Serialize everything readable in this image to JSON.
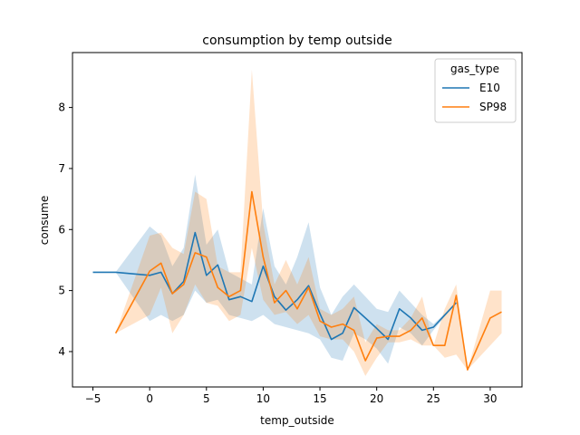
{
  "chart_data": {
    "type": "line",
    "title": "consumption by temp outside",
    "xlabel": "temp_outside",
    "ylabel": "consume",
    "xlim": [
      -6.8,
      32.8
    ],
    "ylim": [
      3.42,
      8.9
    ],
    "xticks": [
      -5,
      0,
      5,
      10,
      15,
      20,
      25,
      30
    ],
    "yticks": [
      4,
      5,
      6,
      7,
      8
    ],
    "grid": false,
    "legend": {
      "title": "gas_type",
      "placement": "top-right"
    },
    "series": [
      {
        "name": "E10",
        "color": "#1f77b4",
        "x": [
          -5,
          -3,
          0,
          1,
          2,
          3,
          4,
          5,
          6,
          7,
          8,
          9,
          10,
          11,
          12,
          13,
          14,
          15,
          16,
          17,
          18,
          19,
          20,
          21,
          22,
          23,
          24,
          25,
          27
        ],
        "y": [
          5.3,
          5.3,
          5.25,
          5.3,
          4.95,
          5.15,
          5.95,
          5.25,
          5.42,
          4.85,
          4.9,
          4.82,
          5.4,
          4.9,
          4.68,
          4.85,
          5.08,
          4.62,
          4.2,
          4.3,
          4.72,
          4.55,
          4.38,
          4.2,
          4.7,
          4.55,
          4.35,
          4.4,
          4.8
        ],
        "ci_low": [
          5.3,
          5.3,
          4.5,
          4.6,
          4.5,
          4.6,
          5.0,
          4.8,
          4.85,
          4.6,
          4.55,
          4.5,
          4.6,
          4.45,
          4.4,
          4.35,
          4.3,
          4.2,
          3.9,
          3.85,
          4.3,
          4.2,
          4.05,
          3.8,
          4.4,
          4.3,
          4.1,
          4.35,
          4.8
        ],
        "ci_high": [
          5.3,
          5.3,
          6.05,
          5.9,
          5.4,
          5.7,
          6.9,
          5.75,
          6.0,
          5.3,
          5.2,
          5.1,
          6.35,
          5.4,
          5.1,
          5.55,
          6.12,
          5.05,
          4.6,
          4.9,
          5.1,
          4.9,
          4.7,
          4.65,
          5.0,
          4.8,
          4.6,
          4.45,
          4.8
        ]
      },
      {
        "name": "SP98",
        "color": "#ff7f0e",
        "x": [
          -3,
          0,
          1,
          2,
          3,
          4,
          5,
          6,
          7,
          8,
          9,
          10,
          11,
          12,
          13,
          14,
          15,
          16,
          17,
          18,
          19,
          20,
          21,
          22,
          23,
          24,
          25,
          26,
          27,
          28,
          30,
          31
        ],
        "y": [
          4.3,
          5.32,
          5.45,
          4.95,
          5.1,
          5.62,
          5.55,
          5.05,
          4.9,
          5.0,
          6.62,
          5.55,
          4.8,
          5.0,
          4.7,
          5.05,
          4.5,
          4.4,
          4.45,
          4.35,
          3.85,
          4.22,
          4.25,
          4.25,
          4.35,
          4.55,
          4.1,
          4.1,
          4.92,
          3.7,
          4.55,
          4.65
        ],
        "ci_low": [
          4.3,
          4.6,
          5.05,
          4.3,
          4.6,
          5.1,
          4.8,
          4.75,
          4.5,
          4.6,
          5.7,
          4.85,
          4.6,
          4.65,
          4.45,
          4.6,
          4.25,
          4.2,
          4.2,
          4.0,
          3.6,
          3.9,
          4.15,
          4.15,
          4.2,
          4.1,
          4.1,
          3.9,
          3.95,
          3.7,
          4.1,
          4.3
        ],
        "ci_high": [
          4.3,
          5.9,
          5.95,
          5.7,
          5.6,
          6.62,
          6.5,
          5.4,
          5.3,
          5.3,
          8.62,
          6.1,
          5.1,
          5.5,
          5.1,
          5.55,
          4.7,
          4.6,
          4.7,
          4.9,
          4.15,
          4.45,
          4.35,
          4.35,
          4.55,
          4.9,
          4.1,
          4.7,
          5.1,
          3.7,
          5.0,
          5.0
        ]
      }
    ]
  }
}
